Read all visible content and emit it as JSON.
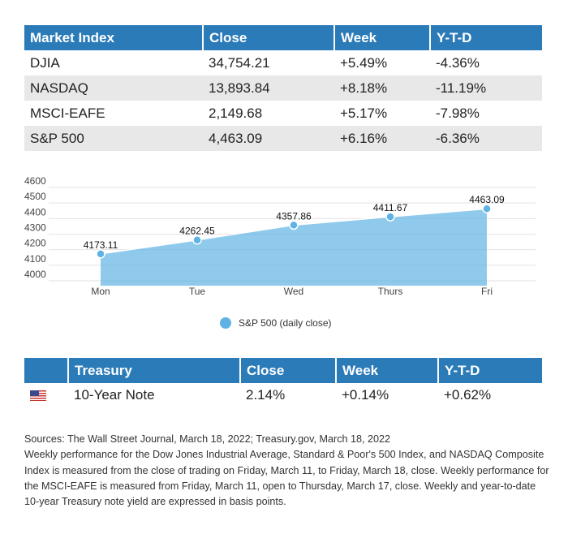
{
  "market_table": {
    "headers": [
      "Market Index",
      "Close",
      "Week",
      "Y-T-D"
    ],
    "rows": [
      [
        "DJIA",
        "34,754.21",
        "+5.49%",
        "-4.36%"
      ],
      [
        "NASDAQ",
        "13,893.84",
        "+8.18%",
        "-11.19%"
      ],
      [
        "MSCI-EAFE",
        "2,149.68",
        "+5.17%",
        "-7.98%"
      ],
      [
        "S&P 500",
        "4,463.09",
        "+6.16%",
        "-6.36%"
      ]
    ]
  },
  "chart_data": {
    "type": "area",
    "categories": [
      "Mon",
      "Tue",
      "Wed",
      "Thurs",
      "Fri"
    ],
    "series": [
      {
        "name": "S&P 500 (daily close)",
        "values": [
          4173.11,
          4262.45,
          4357.86,
          4411.67,
          4463.09
        ],
        "labels": [
          "4173.11",
          "4262.45",
          "4357.86",
          "4411.67",
          "4463.09"
        ]
      }
    ],
    "yticks": [
      "4000",
      "4100",
      "4200",
      "4300",
      "4400",
      "4500",
      "4600"
    ],
    "ylim": [
      4000,
      4600
    ],
    "legend": "bottom-center",
    "grid": true,
    "color": "#5fb3e4"
  },
  "treasury_table": {
    "flag": "us-flag-icon",
    "headers": [
      "Treasury",
      "Close",
      "Week",
      "Y-T-D"
    ],
    "row": [
      "10-Year Note",
      "2.14%",
      "+0.14%",
      "+0.62%"
    ]
  },
  "footnotes": [
    "Sources: The Wall Street Journal, March 18, 2022; Treasury.gov, March 18, 2022",
    "Weekly performance for the Dow Jones Industrial Average, Standard & Poor's 500 Index, and NASDAQ Composite Index is measured from the close of trading on Friday, March 11, to Friday, March 18, close. Weekly performance for the MSCI-EAFE is measured from Friday, March 11, open to Thursday, March 17, close. Weekly and year-to-date 10-year Treasury note yield are expressed in basis points."
  ]
}
